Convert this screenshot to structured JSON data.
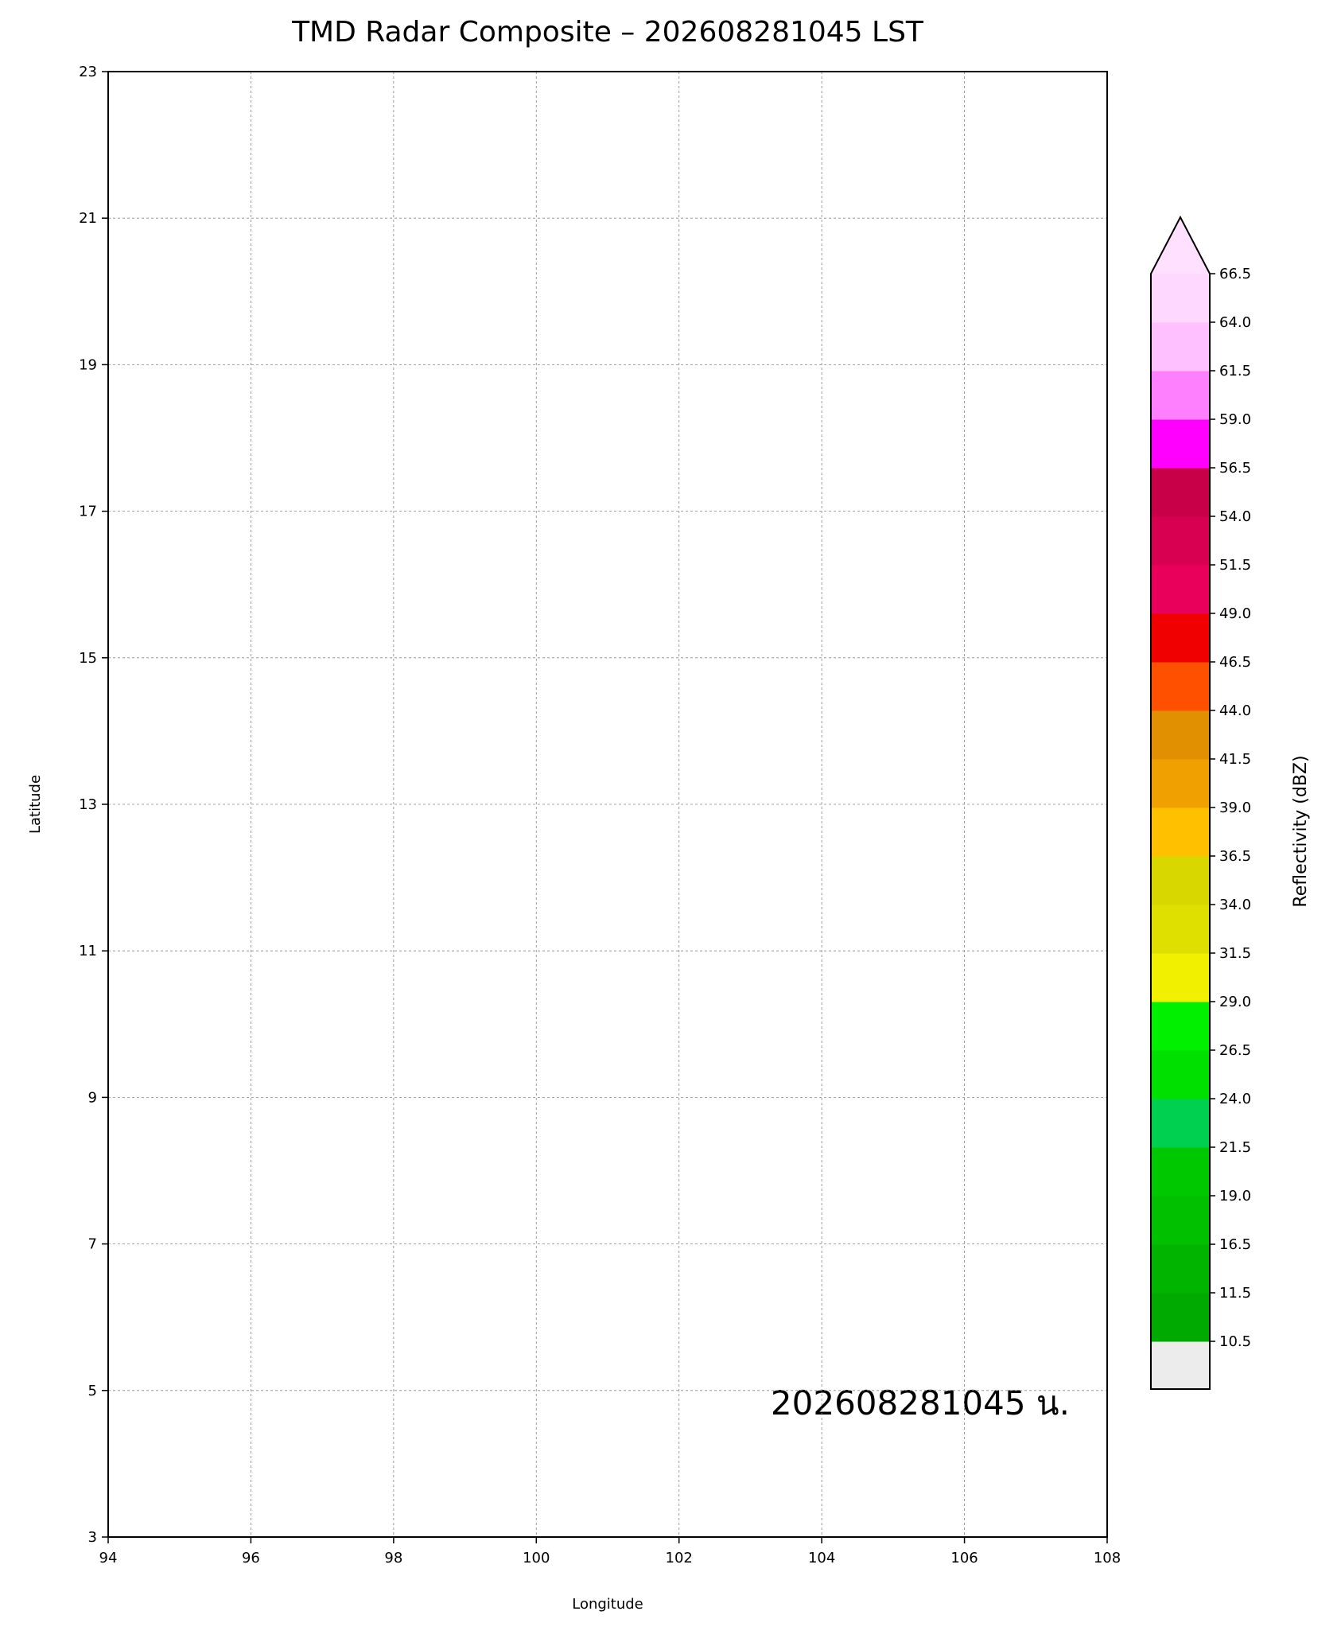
{
  "title": "TMD Radar Composite – 202608281045 LST",
  "map": {
    "xlabel": "Longitude",
    "ylabel": "Latitude",
    "xlim": [
      94,
      108
    ],
    "ylim": [
      3,
      23
    ],
    "xticks": [
      94,
      96,
      98,
      100,
      102,
      104,
      106,
      108
    ],
    "yticks": [
      3,
      5,
      7,
      9,
      11,
      13,
      15,
      17,
      19,
      21,
      23
    ],
    "grid": true,
    "annotation": "202608281045 น."
  },
  "colorbar": {
    "label": "Reflectivity (dBZ)",
    "ticks": [
      10.5,
      11.5,
      16.5,
      {
        "value": 19,
        "label": "19.0"
      },
      21.5,
      {
        "value": 24,
        "label": "24.0"
      },
      26.5,
      {
        "value": 29,
        "label": "29.0"
      },
      31.5,
      {
        "value": 34,
        "label": "34.0"
      },
      36.5,
      {
        "value": 39,
        "label": "39.0"
      },
      41.5,
      {
        "value": 44,
        "label": "44.0"
      },
      46.5,
      {
        "value": 49,
        "label": "49.0"
      },
      51.5,
      {
        "value": 54,
        "label": "54.0"
      },
      56.5,
      {
        "value": 59,
        "label": "59.0"
      },
      61.5,
      {
        "value": 64,
        "label": "64.0"
      },
      66.5
    ],
    "colors": [
      "#00aa00",
      "#00b400",
      "#00c000",
      "#00c800",
      "#00d050",
      "#00e000",
      "#00f000",
      "#f0f000",
      "#e0e000",
      "#d8d800",
      "#ffc000",
      "#f0a000",
      "#e09000",
      "#ff5000",
      "#f00000",
      "#e8005a",
      "#d80050",
      "#c80048",
      "#ff00ff",
      "#ff80ff",
      "#ffc0ff",
      "#ffd8ff"
    ],
    "under_color": "#ececec",
    "over_color": "#ffe0ff"
  }
}
